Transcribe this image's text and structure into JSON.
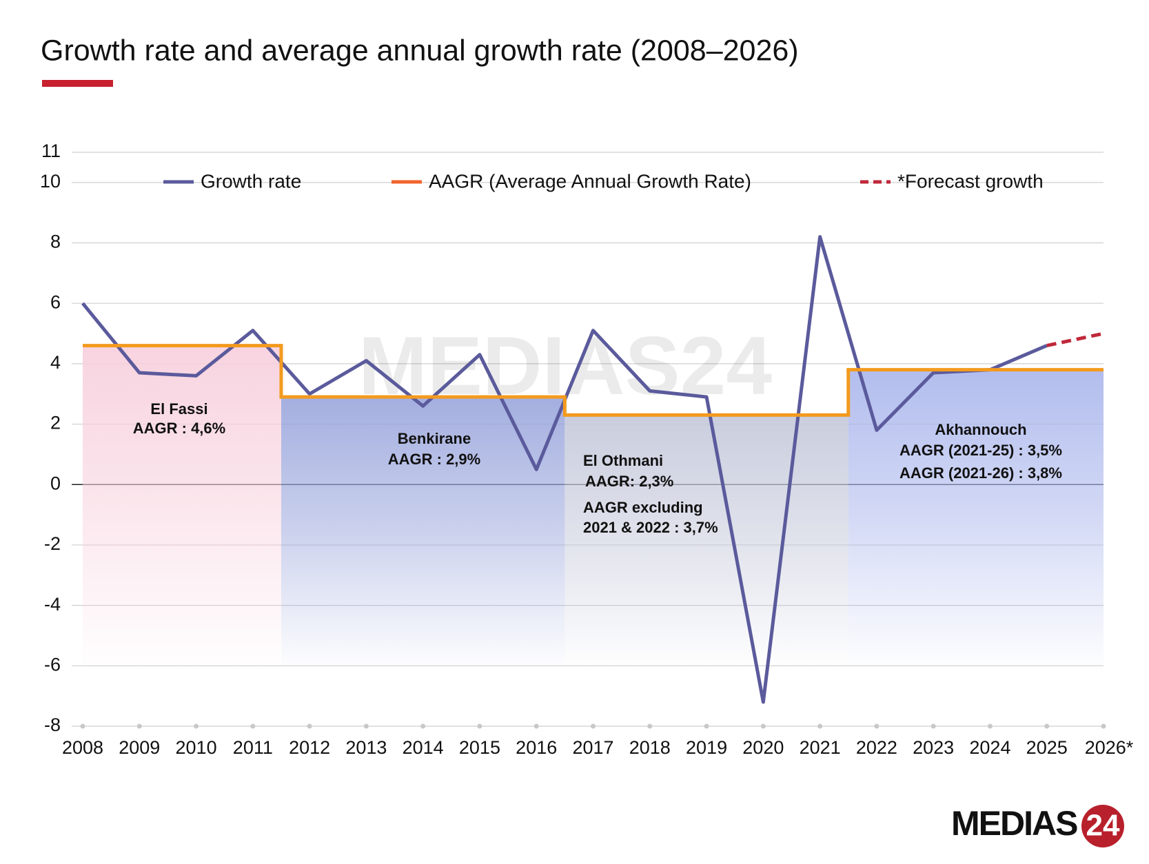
{
  "chart_data": {
    "type": "line",
    "title": "Growth rate and average annual growth rate (2008–2026)",
    "categories": [
      "2008",
      "2009",
      "2010",
      "2011",
      "2012",
      "2013",
      "2014",
      "2015",
      "2016",
      "2017",
      "2018",
      "2019",
      "2020",
      "2021",
      "2022",
      "2023",
      "2024",
      "2025",
      "2026*"
    ],
    "series": [
      {
        "name": "Growth rate",
        "color": "#5a5a9c",
        "values": [
          6.0,
          3.7,
          3.6,
          5.1,
          3.0,
          4.1,
          2.6,
          4.3,
          0.5,
          5.1,
          3.1,
          2.9,
          -7.2,
          8.2,
          1.8,
          3.7,
          3.8,
          4.6,
          null
        ]
      },
      {
        "name": "*Forecast growth",
        "color": "#c0283a",
        "dashed": true,
        "values": [
          null,
          null,
          null,
          null,
          null,
          null,
          null,
          null,
          null,
          null,
          null,
          null,
          null,
          null,
          null,
          null,
          null,
          4.6,
          5.0
        ]
      }
    ],
    "aagr": {
      "name": "AAGR (Average Annual Growth Rate)",
      "color": "#f39a1e",
      "legend_color": "#f0642d",
      "periods": [
        {
          "from": "2008",
          "to": "2011",
          "value": 4.6,
          "fill": "#f7cfdc",
          "lines": [
            "El Fassi",
            "AAGR : 4,6%"
          ]
        },
        {
          "from": "2012",
          "to": "2016",
          "value": 2.9,
          "fill": "#9aa6dc",
          "lines": [
            "Benkirane",
            "AAGR : 2,9%"
          ]
        },
        {
          "from": "2017",
          "to": "2021",
          "value": 2.3,
          "fill": "#c4c8da",
          "lines": [
            "El Othmani",
            "AAGR: 2,3%",
            "AAGR excluding",
            "2021 & 2022 : 3,7%"
          ]
        },
        {
          "from": "2022",
          "to": "2026*",
          "value": 3.8,
          "fill": "#aab6ec",
          "lines": [
            "Akhannouch",
            "AAGR (2021-25) : 3,5%",
            "AAGR (2021-26) : 3,8%"
          ]
        }
      ]
    },
    "ylim": [
      -8,
      11
    ],
    "yticks": [
      -8,
      -6,
      -4,
      -2,
      0,
      2,
      4,
      6,
      8,
      10,
      11
    ],
    "grid": true,
    "logo": {
      "text": "MEDIAS",
      "number": "24"
    }
  }
}
